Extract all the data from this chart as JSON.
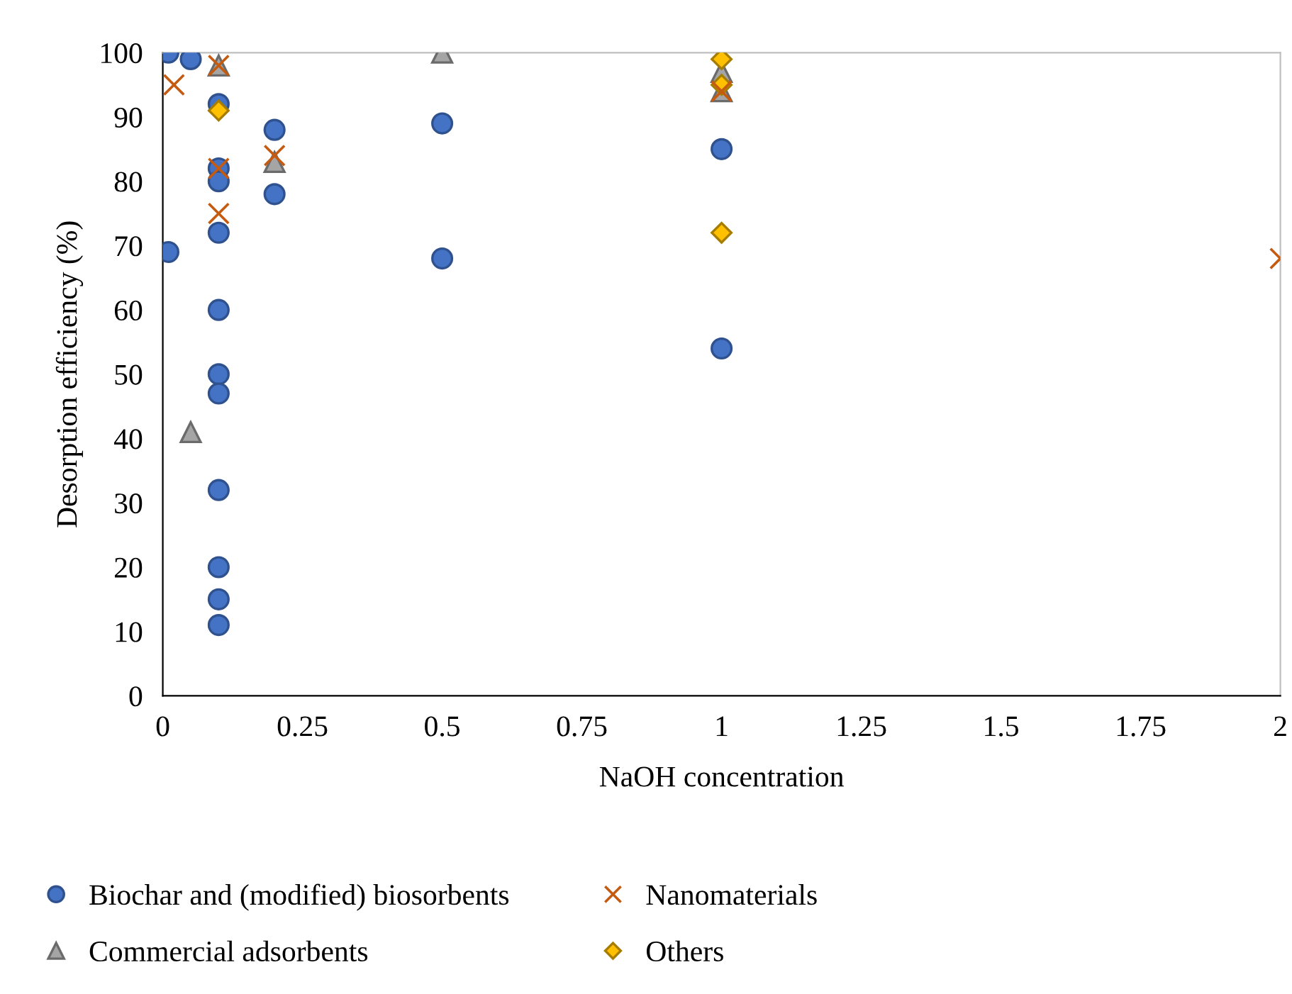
{
  "chart_data": {
    "type": "scatter",
    "xlabel": "NaOH concentration",
    "ylabel": "Desorption efficiency (%)",
    "xlim": [
      0,
      2
    ],
    "xticks": [
      0,
      {
        "value": 0.25,
        "label": "0.25"
      },
      {
        "value": 0.5,
        "label": "0.5"
      },
      {
        "value": 0.75,
        "label": "0.75"
      },
      1,
      {
        "value": 1.25,
        "label": "1.25"
      },
      {
        "value": 1.5,
        "label": "1.5"
      },
      {
        "value": 1.75,
        "label": "1.75"
      },
      2
    ],
    "ylim": [
      0,
      100
    ],
    "yticks": [
      0,
      10,
      20,
      30,
      40,
      50,
      60,
      70,
      80,
      90,
      100
    ],
    "grid": false,
    "legend": "bottom",
    "series": [
      {
        "name": "Biochar and (modified) biosorbents",
        "color": "#4472c4",
        "marker": "circle",
        "x": [
          0.01,
          0.05,
          0.1,
          0.1,
          0.1,
          0.1,
          0.1,
          0.1,
          0.1,
          0.1,
          0.1,
          0.1,
          0.1,
          0.01,
          0.2,
          0.2,
          0.5,
          0.5,
          1,
          1
        ],
        "values": [
          100,
          99,
          92,
          82,
          80,
          72,
          60,
          50,
          47,
          32,
          20,
          15,
          11,
          69,
          88,
          78,
          89,
          68,
          85,
          54
        ]
      },
      {
        "name": "Nanomaterials",
        "color": "#c55a11",
        "marker": "cross",
        "x": [
          0.02,
          0.1,
          0.1,
          0.1,
          0.2,
          1,
          2
        ],
        "values": [
          95,
          98,
          82,
          75,
          84,
          94,
          68
        ]
      },
      {
        "name": "Commercial adsorbents",
        "color": "#a5a5a5",
        "marker": "triangle",
        "x": [
          0.1,
          0.05,
          0.2,
          0.5,
          1,
          1
        ],
        "values": [
          98,
          41,
          83,
          100,
          97,
          94
        ]
      },
      {
        "name": "Others",
        "color": "#ffc000",
        "marker": "diamond",
        "x": [
          0.1,
          1,
          1,
          1
        ],
        "values": [
          91,
          99,
          95,
          72
        ]
      }
    ]
  }
}
